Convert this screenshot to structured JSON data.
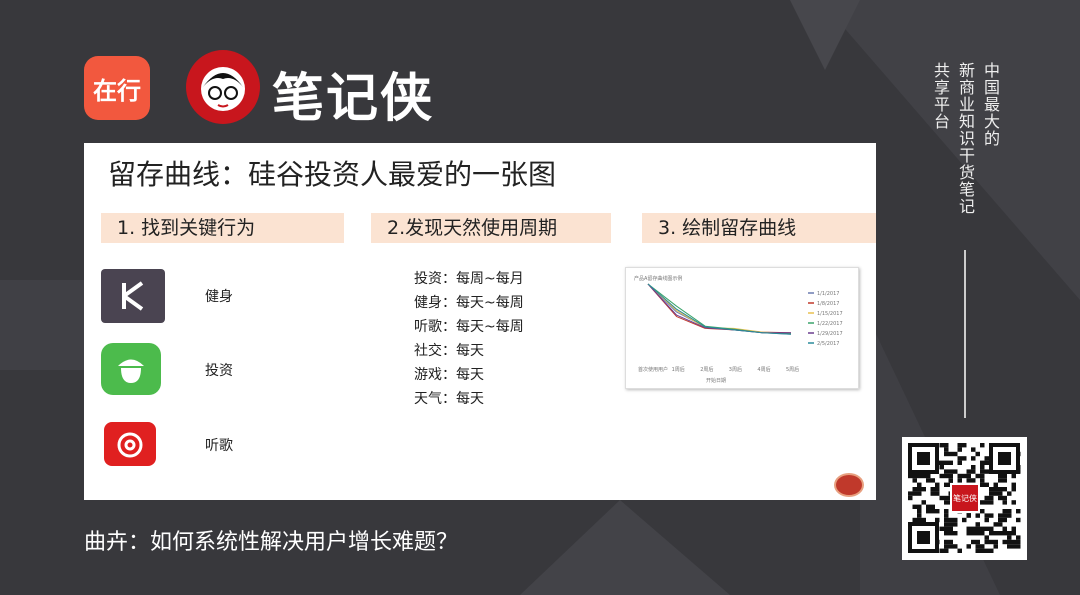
{
  "header": {
    "app_logo_text": "在行",
    "brand_name": "笔记侠"
  },
  "slide": {
    "title": "留存曲线：硅谷投资人最爱的一张图",
    "steps": [
      "1. 找到关键行为",
      "2.发现天然使用周期",
      "3. 绘制留存曲线"
    ],
    "apps": [
      {
        "label": "健身",
        "icon": "keep-icon",
        "color": "#4a4451"
      },
      {
        "label": "投资",
        "icon": "acorn-icon",
        "color": "#4cbb4c"
      },
      {
        "label": "听歌",
        "icon": "netease-music-icon",
        "color": "#e02020"
      }
    ],
    "usage": [
      "投资：每周~每月",
      "健身：每天~每周",
      "听歌：每天~每周",
      "社交：每天",
      "游戏：每天",
      "天气：每天"
    ],
    "retention_chart": {
      "type": "line",
      "title": "产品A留存曲线图示例",
      "xlabel": "开始日期",
      "categories": [
        "首次使用用户",
        "1周后",
        "2周后",
        "3周后",
        "4周后",
        "5周后"
      ],
      "series": [
        {
          "name": "1/1/2017",
          "color": "#6b7bb0",
          "values": [
            100,
            62,
            42,
            38,
            34,
            32
          ]
        },
        {
          "name": "1/8/2017",
          "color": "#c0392b",
          "values": [
            100,
            56,
            40,
            38,
            35,
            34
          ]
        },
        {
          "name": "1/15/2017",
          "color": "#e8c050",
          "values": [
            100,
            64,
            41,
            40,
            35,
            33
          ]
        },
        {
          "name": "1/22/2017",
          "color": "#3aa36a",
          "values": [
            100,
            70,
            43,
            39,
            34,
            33
          ]
        },
        {
          "name": "1/29/2017",
          "color": "#6a3d8f",
          "values": [
            100,
            58,
            41,
            38,
            34,
            34
          ]
        },
        {
          "name": "2/5/2017",
          "color": "#2a8a9a",
          "values": [
            100,
            66,
            42,
            38,
            34,
            32
          ]
        }
      ]
    }
  },
  "caption": "曲卉：如何系统性解决用户增长难题？",
  "sidebar": {
    "lines": [
      "中国最大的",
      "新商业知识干货笔记",
      "共享平台"
    ]
  },
  "qr": {
    "center_text": "笔记侠"
  }
}
